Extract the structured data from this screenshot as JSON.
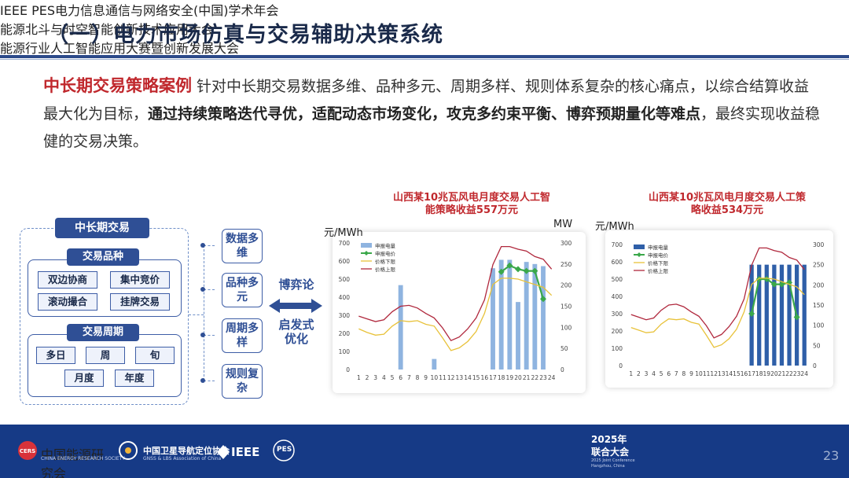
{
  "header": {
    "title": "（一）电力市场仿真与交易辅助决策系统"
  },
  "intro": {
    "lead": "中长期交易策略案例",
    "text1": "针对中长期交易数据多维、品种多元、周期多样、规则体系复杂的核心痛点，以综合结算收益最大化为目标，",
    "bold": "通过持续策略迭代寻优，适配动态市场变化，攻克多约束平衡、博弈预期量化等难点",
    "text2": "，最终实现收益稳健的交易决策。"
  },
  "diagram": {
    "main": "中长期交易",
    "variety_title": "交易品种",
    "varieties": [
      "双边协商",
      "集中竞价",
      "滚动撮合",
      "挂牌交易"
    ],
    "period_title": "交易周期",
    "periods": [
      "多日",
      "周",
      "旬",
      "月度",
      "年度"
    ],
    "tags": [
      "数据多维",
      "品种多元",
      "周期多样",
      "规则复杂"
    ],
    "method_top": "博弈论",
    "method_bottom": "启发式优化"
  },
  "chart_data": [
    {
      "type": "bar",
      "title": "山西某10兆瓦风电月度交易人工智能策略收益557万元",
      "ylabel": "元/MWh",
      "y2label": "MW",
      "ylim": [
        0,
        700
      ],
      "y2lim": [
        0,
        300
      ],
      "categories": [
        "1",
        "2",
        "3",
        "4",
        "5",
        "6",
        "7",
        "8",
        "9",
        "10",
        "11",
        "12",
        "13",
        "14",
        "15",
        "16",
        "17",
        "18",
        "19",
        "20",
        "21",
        "22",
        "23",
        "24"
      ],
      "series": [
        {
          "name": "申报电量",
          "kind": "bar",
          "axis": "y2",
          "color": "#8fb4e0",
          "values": [
            0,
            0,
            0,
            0,
            0,
            200,
            0,
            0,
            0,
            25,
            0,
            0,
            0,
            0,
            0,
            0,
            240,
            260,
            260,
            160,
            255,
            250,
            245,
            0
          ]
        },
        {
          "name": "申报电价",
          "kind": "line-marker",
          "axis": "y",
          "color": "#3aa84a",
          "values": [
            null,
            null,
            null,
            null,
            null,
            null,
            null,
            null,
            null,
            null,
            null,
            null,
            null,
            null,
            null,
            null,
            null,
            540,
            575,
            555,
            545,
            545,
            390,
            null
          ]
        },
        {
          "name": "价格下限",
          "kind": "line",
          "axis": "y",
          "color": "#e8c23a",
          "values": [
            225,
            205,
            190,
            195,
            240,
            270,
            265,
            270,
            250,
            240,
            175,
            105,
            120,
            155,
            210,
            310,
            470,
            505,
            505,
            500,
            485,
            470,
            455,
            410
          ]
        },
        {
          "name": "价格上限",
          "kind": "line",
          "axis": "y",
          "color": "#b0283d",
          "values": [
            295,
            280,
            265,
            275,
            320,
            350,
            355,
            340,
            310,
            285,
            230,
            160,
            180,
            225,
            285,
            385,
            580,
            680,
            680,
            665,
            655,
            625,
            610,
            555
          ]
        }
      ],
      "yticks": [
        0,
        100,
        200,
        300,
        400,
        500,
        600,
        700
      ],
      "y2ticks": [
        0,
        50,
        100,
        150,
        200,
        250,
        300
      ],
      "legend": "top-left"
    },
    {
      "type": "bar",
      "title": "山西某10兆瓦风电月度交易人工策略收益534万元",
      "ylabel": "元/MWh",
      "ylim": [
        0,
        700
      ],
      "y2lim": [
        0,
        300
      ],
      "categories": [
        "1",
        "2",
        "3",
        "4",
        "5",
        "6",
        "7",
        "8",
        "9",
        "10",
        "11",
        "12",
        "13",
        "14",
        "15",
        "16",
        "17",
        "18",
        "19",
        "20",
        "21",
        "22",
        "23",
        "24"
      ],
      "series": [
        {
          "name": "申报电量",
          "kind": "bar",
          "axis": "y2",
          "color": "#2f5fa8",
          "values": [
            0,
            0,
            0,
            0,
            0,
            0,
            0,
            0,
            0,
            0,
            0,
            0,
            0,
            0,
            0,
            0,
            250,
            250,
            250,
            250,
            250,
            250,
            250,
            250
          ]
        },
        {
          "name": "申报电价",
          "kind": "line-marker",
          "axis": "y",
          "color": "#3aa84a",
          "values": [
            null,
            null,
            null,
            null,
            null,
            null,
            null,
            null,
            null,
            null,
            null,
            null,
            null,
            null,
            null,
            null,
            300,
            500,
            500,
            470,
            470,
            480,
            280,
            null
          ]
        },
        {
          "name": "价格下限",
          "kind": "line",
          "axis": "y",
          "color": "#e8c23a",
          "values": [
            220,
            205,
            190,
            195,
            240,
            270,
            265,
            270,
            250,
            240,
            175,
            105,
            120,
            155,
            210,
            310,
            470,
            505,
            505,
            500,
            485,
            470,
            455,
            410
          ]
        },
        {
          "name": "价格上限",
          "kind": "line",
          "axis": "y",
          "color": "#b0283d",
          "values": [
            295,
            280,
            265,
            275,
            320,
            350,
            355,
            340,
            310,
            285,
            230,
            160,
            180,
            225,
            285,
            385,
            580,
            680,
            680,
            665,
            655,
            625,
            610,
            555
          ]
        }
      ],
      "yticks": [
        0,
        100,
        200,
        300,
        400,
        500,
        600,
        700
      ],
      "y2ticks": [
        0,
        50,
        100,
        150,
        200,
        250,
        300
      ],
      "legend": "top-left"
    }
  ],
  "footer": {
    "logos": [
      "中国能源研究会",
      "CHINA ENERGY RESEARCH SOCIETY",
      "中国卫星导航定位协会",
      "GNSS & LBS Association of China",
      "IEEE",
      "PES"
    ],
    "event_year": "2025年",
    "event_name": "联合大会",
    "event_sub": "2025 Joint Conference Hangzhou, China",
    "lines": [
      "IEEE PES电力信息通信与网络安全(中国)学术年会",
      "能源北斗与时空智能创新技术应用大会",
      "能源行业人工智能应用大赛暨创新发展大会"
    ],
    "page": "23"
  }
}
